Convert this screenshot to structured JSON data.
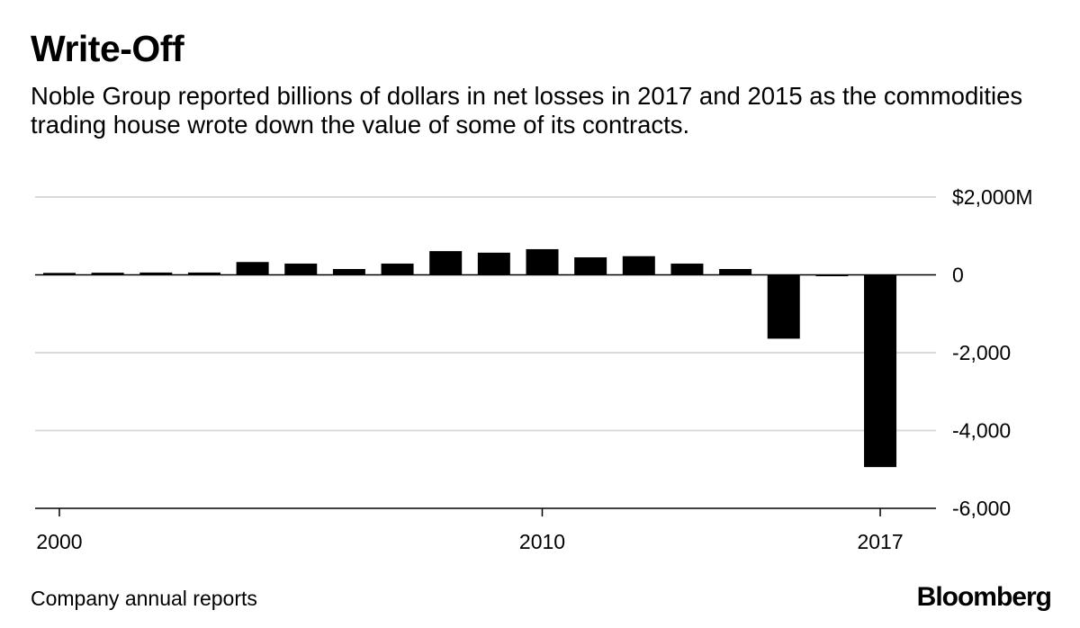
{
  "header": {
    "title": "Write-Off",
    "subtitle": "Noble Group reported billions of dollars in net losses in 2017 and 2015 as the commodities trading house wrote down the value of some of its contracts."
  },
  "footer": {
    "source": "Company annual reports",
    "logo": "Bloomberg"
  },
  "colors": {
    "bars": "#000000",
    "gridlines": "#d9d9d9",
    "background": "#ffffff"
  },
  "chart_data": {
    "type": "bar",
    "title": "Write-Off",
    "xlabel": "",
    "ylabel": "",
    "categories": [
      "2000",
      "2001",
      "2002",
      "2003",
      "2004",
      "2005",
      "2006",
      "2007",
      "2008",
      "2009",
      "2010",
      "2011",
      "2012",
      "2013",
      "2014",
      "2015",
      "2016",
      "2017"
    ],
    "values": [
      50,
      55,
      60,
      60,
      330,
      290,
      150,
      290,
      610,
      570,
      660,
      450,
      480,
      290,
      150,
      -1640,
      -20,
      -4940
    ],
    "ylim": [
      -6000,
      2000
    ],
    "y_ticks": [
      {
        "value": 2000,
        "label": "$2,000M"
      },
      {
        "value": 0,
        "label": "0"
      },
      {
        "value": -2000,
        "label": "-2,000"
      },
      {
        "value": -4000,
        "label": "-4,000"
      },
      {
        "value": -6000,
        "label": "-6,000"
      }
    ],
    "x_tick_labels": [
      {
        "category": "2000",
        "label": "2000"
      },
      {
        "category": "2010",
        "label": "2010"
      },
      {
        "category": "2017",
        "label": "2017"
      }
    ],
    "grid": true,
    "legend": "none"
  }
}
